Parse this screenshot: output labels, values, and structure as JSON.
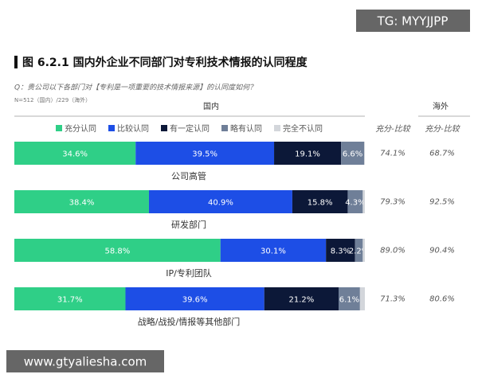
{
  "chart_data": {
    "type": "stacked-bar-horizontal",
    "title": "图 6.2.1 国内外企业不同部门对专利技术情报的认同程度",
    "subtitle": "Q：贵公司以下各部门对【专利是一项重要的技术情报来源】的认同度如何？",
    "note": "N=512（国内）/229（海外）",
    "domestic_header": "国内",
    "overseas_header": "海外",
    "categories": [
      "公司高管",
      "研发部门",
      "IP/专利团队",
      "战略/战投/情报等其他部门"
    ],
    "xlim": [
      0,
      100
    ],
    "series": [
      {
        "name": "充分认同",
        "color": "#2fcf87",
        "values": [
          34.6,
          38.4,
          58.8,
          31.7
        ],
        "value_labels": [
          "34.6%",
          "38.4%",
          "58.8%",
          "31.7%"
        ]
      },
      {
        "name": "比较认同",
        "color": "#1d4ee6",
        "values": [
          39.5,
          40.9,
          30.1,
          39.6
        ],
        "value_labels": [
          "39.5%",
          "40.9%",
          "30.1%",
          "39.6%"
        ]
      },
      {
        "name": "有一定认同",
        "color": "#0c1838",
        "values": [
          19.1,
          15.8,
          8.3,
          21.2
        ],
        "value_labels": [
          "19.1%",
          "15.8%",
          "8.3%",
          "21.2%"
        ]
      },
      {
        "name": "略有认同",
        "color": "#6f7f98",
        "values": [
          6.6,
          4.3,
          2.2,
          6.1
        ],
        "value_labels": [
          "6.6%",
          "4.3%",
          "2.2%",
          "6.1%"
        ]
      },
      {
        "name": "完全不认同",
        "color": "#d3d6db",
        "values": [
          0.2,
          0.6,
          0.6,
          1.4
        ]
      }
    ],
    "domestic_total": {
      "header": "充分-比较",
      "values": [
        74.1,
        79.3,
        89.0,
        71.3
      ],
      "value_labels": [
        "74.1%",
        "79.3%",
        "89.0%",
        "71.3%"
      ]
    },
    "overseas_total": {
      "header": "充分-比较",
      "values": [
        68.7,
        92.5,
        90.4,
        80.6
      ],
      "value_labels": [
        "68.7%",
        "92.5%",
        "90.4%",
        "80.6%"
      ]
    },
    "watermark_top": "TG: MYYJJPP",
    "watermark_bottom": "www.gtyaliesha.com"
  }
}
